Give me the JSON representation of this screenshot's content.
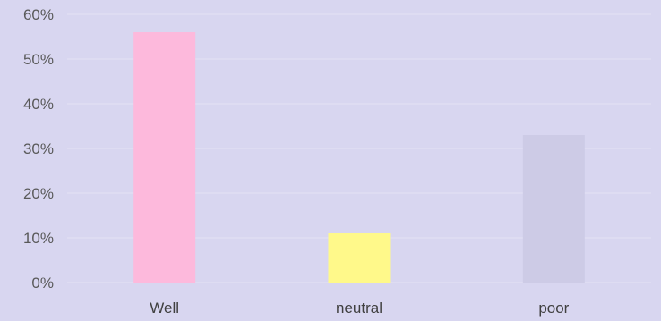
{
  "chart_data": {
    "type": "bar",
    "title": "",
    "xlabel": "",
    "ylabel": "",
    "categories": [
      "Well",
      "neutral",
      "poor"
    ],
    "values": [
      56,
      11,
      33
    ],
    "value_format": "percent",
    "ylim": [
      0,
      60
    ],
    "yticks": [
      0,
      10,
      20,
      30,
      40,
      50,
      60
    ],
    "ytick_labels": [
      "0%",
      "10%",
      "20%",
      "30%",
      "40%",
      "50%",
      "60%"
    ],
    "grid": true,
    "legend": "none",
    "colors": {
      "background": "#d8d6f0",
      "bars": [
        "#fdb9dc",
        "#fff98a",
        "#cdcbe6"
      ],
      "grid": "#e4e2f4"
    }
  }
}
